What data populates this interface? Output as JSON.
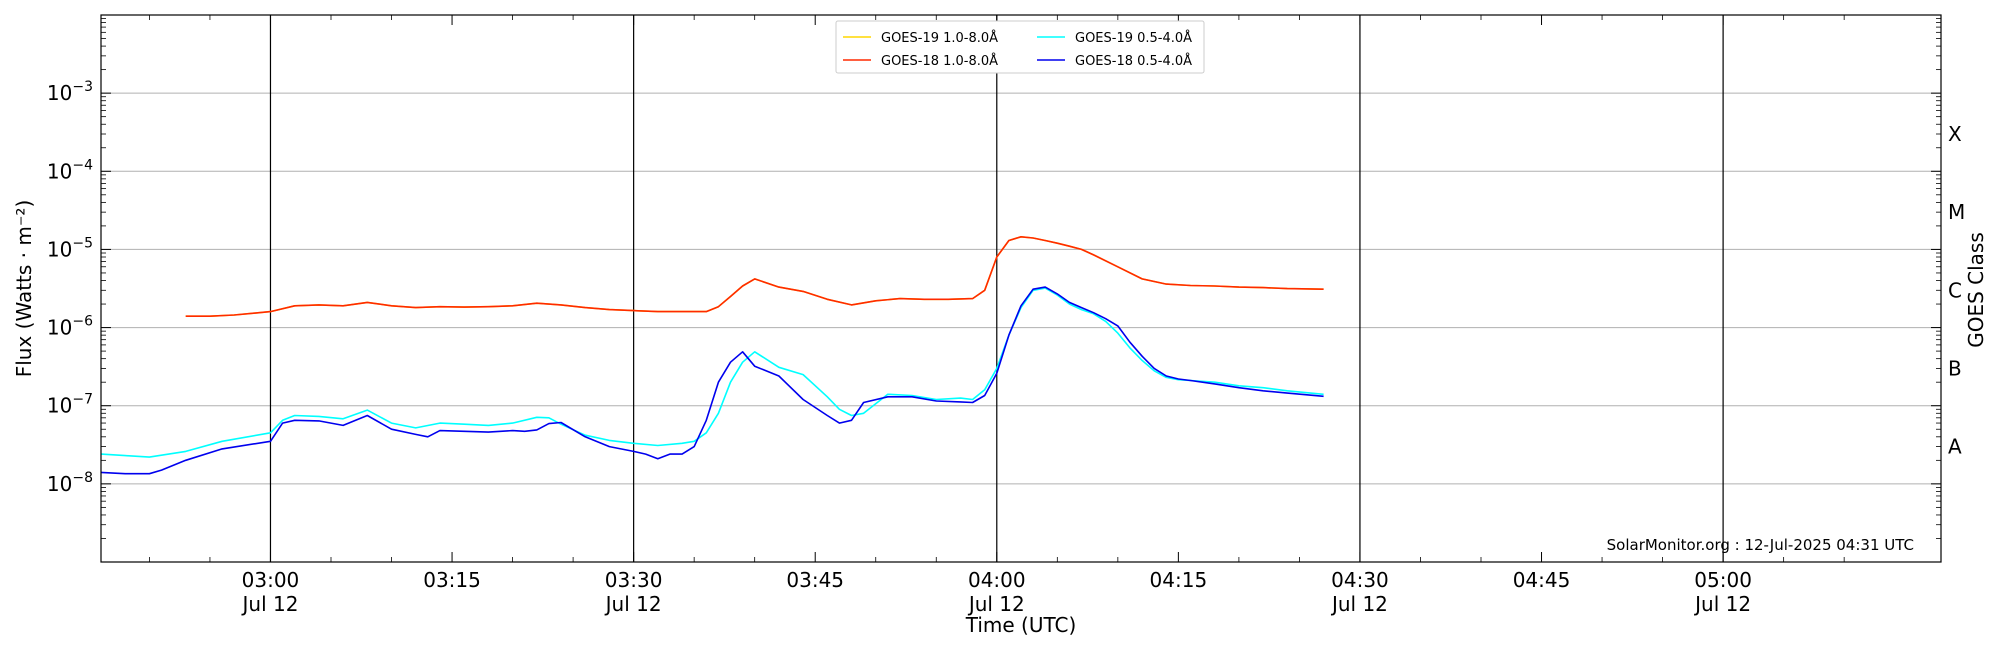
{
  "chart_data": {
    "type": "line",
    "xlabel": "Time (UTC)",
    "ylabel": "Flux (Watts · m⁻²)",
    "ylabel_right": "GOES Class",
    "y_scale": "log",
    "ylim": [
      1e-09,
      0.01
    ],
    "xlim": [
      "02:46",
      "05:18"
    ],
    "grid": "horizontal",
    "legend_position": "top-center",
    "footer": "SolarMonitor.org : 12-Jul-2025 04:31 UTC",
    "y_ticks": [
      {
        "value": 1e-08,
        "base": "10",
        "exp": "−8"
      },
      {
        "value": 1e-07,
        "base": "10",
        "exp": "−7"
      },
      {
        "value": 1e-06,
        "base": "10",
        "exp": "−6"
      },
      {
        "value": 1e-05,
        "base": "10",
        "exp": "−5"
      },
      {
        "value": 0.0001,
        "base": "10",
        "exp": "−4"
      },
      {
        "value": 0.001,
        "base": "10",
        "exp": "−3"
      }
    ],
    "x_ticks": [
      {
        "time": "03:00",
        "date": "Jul 12",
        "line": true
      },
      {
        "time": "03:15",
        "date": "",
        "line": false
      },
      {
        "time": "03:30",
        "date": "Jul 12",
        "line": true
      },
      {
        "time": "03:45",
        "date": "",
        "line": false
      },
      {
        "time": "04:00",
        "date": "Jul 12",
        "line": true
      },
      {
        "time": "04:15",
        "date": "",
        "line": false
      },
      {
        "time": "04:30",
        "date": "Jul 12",
        "line": true
      },
      {
        "time": "04:45",
        "date": "",
        "line": false
      },
      {
        "time": "05:00",
        "date": "Jul 12",
        "line": true
      }
    ],
    "classes": [
      {
        "label": "A",
        "value": 3e-08
      },
      {
        "label": "B",
        "value": 3e-07
      },
      {
        "label": "C",
        "value": 3e-06
      },
      {
        "label": "M",
        "value": 3e-05
      },
      {
        "label": "X",
        "value": 0.0003
      }
    ],
    "series": [
      {
        "name": "GOES-19 1.0-8.0Å",
        "color": "#ffd700",
        "x": [
          "02:53",
          "02:55",
          "02:57",
          "03:00",
          "03:02",
          "03:04",
          "03:06",
          "03:08",
          "03:10",
          "03:12",
          "03:14",
          "03:16",
          "03:18",
          "03:20",
          "03:22",
          "03:24",
          "03:26",
          "03:28",
          "03:30",
          "03:32",
          "03:34",
          "03:36",
          "03:37",
          "03:38",
          "03:39",
          "03:40",
          "03:42",
          "03:44",
          "03:46",
          "03:48",
          "03:50",
          "03:52",
          "03:54",
          "03:56",
          "03:58",
          "03:59",
          "04:00",
          "04:01",
          "04:02",
          "04:03",
          "04:04",
          "04:05",
          "04:06",
          "04:07",
          "04:08",
          "04:10",
          "04:12",
          "04:14",
          "04:16",
          "04:18",
          "04:20",
          "04:22",
          "04:24",
          "04:27"
        ],
        "values": [
          1.4e-06,
          1.4e-06,
          1.45e-06,
          1.6e-06,
          1.9e-06,
          1.95e-06,
          1.9e-06,
          2.1e-06,
          1.9e-06,
          1.8e-06,
          1.85e-06,
          1.83e-06,
          1.85e-06,
          1.9e-06,
          2.05e-06,
          1.95e-06,
          1.8e-06,
          1.7e-06,
          1.65e-06,
          1.6e-06,
          1.6e-06,
          1.6e-06,
          1.85e-06,
          2.5e-06,
          3.4e-06,
          4.2e-06,
          3.3e-06,
          2.9e-06,
          2.3e-06,
          1.95e-06,
          2.2e-06,
          2.35e-06,
          2.3e-06,
          2.3e-06,
          2.35e-06,
          3e-06,
          8e-06,
          1.3e-05,
          1.45e-05,
          1.4e-05,
          1.3e-05,
          1.2e-05,
          1.1e-05,
          1e-05,
          8.5e-06,
          6e-06,
          4.2e-06,
          3.6e-06,
          3.45e-06,
          3.4e-06,
          3.3e-06,
          3.25e-06,
          3.15e-06,
          3.1e-06
        ]
      },
      {
        "name": "GOES-18 1.0-8.0Å",
        "color": "#ff2a00",
        "x": [
          "02:53",
          "02:55",
          "02:57",
          "03:00",
          "03:02",
          "03:04",
          "03:06",
          "03:08",
          "03:10",
          "03:12",
          "03:14",
          "03:16",
          "03:18",
          "03:20",
          "03:22",
          "03:24",
          "03:26",
          "03:28",
          "03:30",
          "03:32",
          "03:34",
          "03:36",
          "03:37",
          "03:38",
          "03:39",
          "03:40",
          "03:42",
          "03:44",
          "03:46",
          "03:48",
          "03:50",
          "03:52",
          "03:54",
          "03:56",
          "03:58",
          "03:59",
          "04:00",
          "04:01",
          "04:02",
          "04:03",
          "04:04",
          "04:05",
          "04:06",
          "04:07",
          "04:08",
          "04:10",
          "04:12",
          "04:14",
          "04:16",
          "04:18",
          "04:20",
          "04:22",
          "04:24",
          "04:27"
        ],
        "values": [
          1.4e-06,
          1.4e-06,
          1.45e-06,
          1.6e-06,
          1.9e-06,
          1.95e-06,
          1.9e-06,
          2.1e-06,
          1.9e-06,
          1.8e-06,
          1.85e-06,
          1.83e-06,
          1.85e-06,
          1.9e-06,
          2.05e-06,
          1.95e-06,
          1.8e-06,
          1.7e-06,
          1.65e-06,
          1.6e-06,
          1.6e-06,
          1.6e-06,
          1.85e-06,
          2.5e-06,
          3.4e-06,
          4.2e-06,
          3.3e-06,
          2.9e-06,
          2.3e-06,
          1.95e-06,
          2.2e-06,
          2.35e-06,
          2.3e-06,
          2.3e-06,
          2.35e-06,
          3e-06,
          8e-06,
          1.3e-05,
          1.45e-05,
          1.4e-05,
          1.3e-05,
          1.2e-05,
          1.1e-05,
          1e-05,
          8.5e-06,
          6e-06,
          4.2e-06,
          3.6e-06,
          3.45e-06,
          3.4e-06,
          3.3e-06,
          3.25e-06,
          3.15e-06,
          3.1e-06
        ]
      },
      {
        "name": "GOES-19 0.5-4.0Å",
        "color": "#00ffff",
        "x": [
          "02:46",
          "02:48",
          "02:50",
          "02:53",
          "02:56",
          "03:00",
          "03:01",
          "03:02",
          "03:04",
          "03:06",
          "03:08",
          "03:10",
          "03:12",
          "03:14",
          "03:16",
          "03:18",
          "03:20",
          "03:22",
          "03:23",
          "03:24",
          "03:26",
          "03:28",
          "03:30",
          "03:32",
          "03:34",
          "03:35",
          "03:36",
          "03:37",
          "03:38",
          "03:39",
          "03:40",
          "03:42",
          "03:44",
          "03:46",
          "03:47",
          "03:48",
          "03:49",
          "03:51",
          "03:53",
          "03:55",
          "03:57",
          "03:58",
          "03:59",
          "04:00",
          "04:01",
          "04:02",
          "04:03",
          "04:04",
          "04:05",
          "04:06",
          "04:07",
          "04:08",
          "04:09",
          "04:10",
          "04:11",
          "04:12",
          "04:13",
          "04:14",
          "04:15",
          "04:16",
          "04:18",
          "04:20",
          "04:22",
          "04:24",
          "04:27"
        ],
        "values": [
          2.4e-08,
          2.3e-08,
          2.2e-08,
          2.6e-08,
          3.5e-08,
          4.5e-08,
          6.5e-08,
          7.5e-08,
          7.3e-08,
          6.8e-08,
          8.8e-08,
          6e-08,
          5.2e-08,
          6e-08,
          5.8e-08,
          5.6e-08,
          6e-08,
          7.1e-08,
          7e-08,
          5.8e-08,
          4.2e-08,
          3.6e-08,
          3.3e-08,
          3.1e-08,
          3.3e-08,
          3.5e-08,
          4.5e-08,
          8e-08,
          2e-07,
          3.6e-07,
          4.9e-07,
          3.1e-07,
          2.5e-07,
          1.3e-07,
          9e-08,
          7.5e-08,
          8e-08,
          1.4e-07,
          1.35e-07,
          1.2e-07,
          1.25e-07,
          1.2e-07,
          1.6e-07,
          3e-07,
          8e-07,
          1.8e-06,
          3e-06,
          3.2e-06,
          2.6e-06,
          2e-06,
          1.7e-06,
          1.5e-06,
          1.2e-06,
          8.5e-07,
          5.5e-07,
          3.8e-07,
          2.8e-07,
          2.3e-07,
          2.15e-07,
          2.1e-07,
          2e-07,
          1.8e-07,
          1.7e-07,
          1.55e-07,
          1.4e-07
        ]
      },
      {
        "name": "GOES-18 0.5-4.0Å",
        "color": "#0000ee",
        "x": [
          "02:46",
          "02:48",
          "02:50",
          "02:51",
          "02:53",
          "02:56",
          "03:00",
          "03:01",
          "03:02",
          "03:04",
          "03:06",
          "03:08",
          "03:10",
          "03:12",
          "03:13",
          "03:14",
          "03:16",
          "03:18",
          "03:20",
          "03:21",
          "03:22",
          "03:23",
          "03:24",
          "03:26",
          "03:28",
          "03:30",
          "03:31",
          "03:32",
          "03:33",
          "03:34",
          "03:35",
          "03:36",
          "03:37",
          "03:38",
          "03:39",
          "03:40",
          "03:42",
          "03:44",
          "03:46",
          "03:47",
          "03:48",
          "03:49",
          "03:51",
          "03:53",
          "03:55",
          "03:57",
          "03:58",
          "03:59",
          "04:00",
          "04:01",
          "04:02",
          "04:03",
          "04:04",
          "04:05",
          "04:06",
          "04:07",
          "04:08",
          "04:09",
          "04:10",
          "04:11",
          "04:12",
          "04:13",
          "04:14",
          "04:15",
          "04:16",
          "04:18",
          "04:20",
          "04:22",
          "04:24",
          "04:27"
        ],
        "values": [
          1.4e-08,
          1.35e-08,
          1.35e-08,
          1.5e-08,
          2e-08,
          2.8e-08,
          3.5e-08,
          6e-08,
          6.5e-08,
          6.4e-08,
          5.6e-08,
          7.5e-08,
          5e-08,
          4.3e-08,
          4e-08,
          4.8e-08,
          4.7e-08,
          4.6e-08,
          4.8e-08,
          4.7e-08,
          4.9e-08,
          5.9e-08,
          6.1e-08,
          4e-08,
          3e-08,
          2.6e-08,
          2.4e-08,
          2.1e-08,
          2.4e-08,
          2.4e-08,
          3e-08,
          6.5e-08,
          2e-07,
          3.6e-07,
          4.9e-07,
          3.2e-07,
          2.4e-07,
          1.2e-07,
          7.5e-08,
          6e-08,
          6.5e-08,
          1.1e-07,
          1.3e-07,
          1.3e-07,
          1.15e-07,
          1.12e-07,
          1.1e-07,
          1.35e-07,
          2.6e-07,
          8e-07,
          1.9e-06,
          3.1e-06,
          3.3e-06,
          2.7e-06,
          2.1e-06,
          1.8e-06,
          1.55e-06,
          1.3e-06,
          1.05e-06,
          6.5e-07,
          4.3e-07,
          3e-07,
          2.4e-07,
          2.2e-07,
          2.1e-07,
          1.9e-07,
          1.7e-07,
          1.55e-07,
          1.45e-07,
          1.32e-07
        ]
      }
    ]
  }
}
